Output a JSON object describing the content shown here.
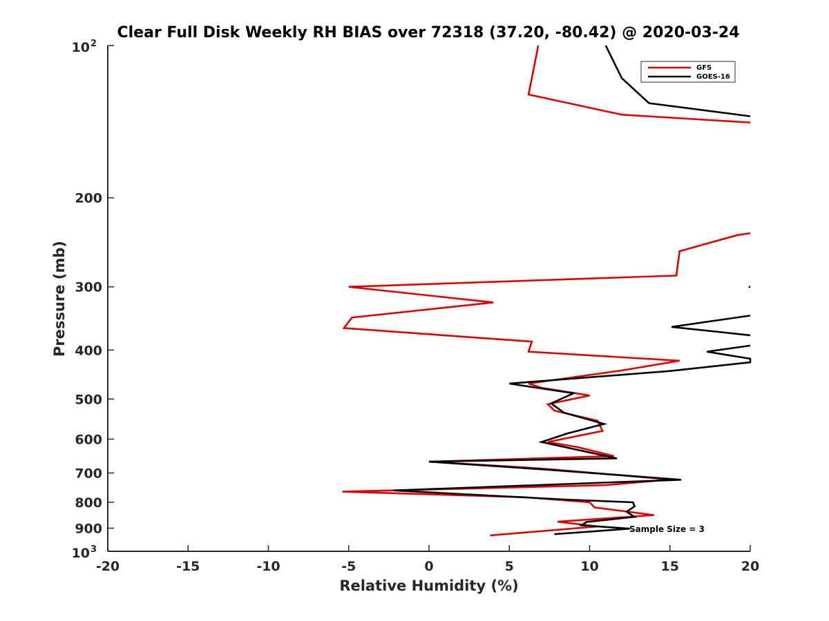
{
  "chart_data": {
    "type": "line",
    "title": "Clear Full Disk Weekly RH BIAS over 72318 (37.20, -80.42) @ 2020-03-24",
    "xlabel": "Relative Humidity (%)",
    "ylabel": "Pressure (mb)",
    "xlim": [
      -20,
      20
    ],
    "ylim": [
      100,
      1000
    ],
    "yscale": "log",
    "y_reversed": true,
    "grid": false,
    "legend_position": "top-right",
    "x_ticks": [
      "-20",
      "-15",
      "-10",
      "-5",
      "0",
      "5",
      "10",
      "15",
      "20"
    ],
    "y_ticks": [
      {
        "value": 100,
        "base": "10",
        "exp": "2"
      },
      {
        "value": 200,
        "label": "200"
      },
      {
        "value": 300,
        "label": "300"
      },
      {
        "value": 400,
        "label": "400"
      },
      {
        "value": 500,
        "label": "500"
      },
      {
        "value": 600,
        "label": "600"
      },
      {
        "value": 700,
        "label": "700"
      },
      {
        "value": 800,
        "label": "800"
      },
      {
        "value": 900,
        "label": "900"
      },
      {
        "value": 1000,
        "base": "10",
        "exp": "3"
      }
    ],
    "annotation": "Sample Size = 3",
    "series": [
      {
        "name": "GFS",
        "color": "#e00000",
        "segments": [
          [
            [
              6.8,
              100
            ],
            [
              6.2,
              125
            ],
            [
              12.0,
              137
            ],
            [
              20.0,
              142
            ]
          ],
          [
            [
              20.0,
              235
            ],
            [
              19.2,
              237
            ],
            [
              15.6,
              255
            ],
            [
              15.4,
              285
            ],
            [
              -5.0,
              300
            ],
            [
              4.0,
              322
            ],
            [
              -4.8,
              345
            ],
            [
              -5.3,
              362
            ],
            [
              6.4,
              385
            ],
            [
              6.2,
              403
            ],
            [
              15.6,
              420
            ],
            [
              12.0,
              439
            ],
            [
              6.2,
              466
            ],
            [
              7.0,
              475
            ],
            [
              10.0,
              492
            ],
            [
              7.4,
              512
            ],
            [
              7.8,
              527
            ],
            [
              10.5,
              552
            ],
            [
              10.8,
              578
            ],
            [
              7.4,
              608
            ],
            [
              9.2,
              622
            ],
            [
              11.5,
              648
            ],
            [
              0.0,
              665
            ],
            [
              7.0,
              686
            ],
            [
              15.0,
              721
            ],
            [
              11.0,
              740
            ],
            [
              -5.4,
              762
            ],
            [
              6.0,
              782
            ],
            [
              10.0,
              800
            ],
            [
              10.3,
              819
            ],
            [
              14.0,
              848
            ],
            [
              8.0,
              874
            ],
            [
              10.5,
              893
            ],
            [
              3.8,
              930
            ]
          ]
        ]
      },
      {
        "name": "GOES-16",
        "color": "#000000",
        "segments": [
          [
            [
              11.0,
              100
            ],
            [
              12.0,
              116
            ],
            [
              13.7,
              130
            ],
            [
              20.0,
              138
            ]
          ],
          [
            [
              19.9,
              300
            ],
            [
              20.0,
              300
            ]
          ],
          [
            [
              20.0,
              342
            ],
            [
              15.1,
              360
            ],
            [
              20.0,
              374
            ]
          ],
          [
            [
              20.0,
              392
            ],
            [
              17.3,
              403
            ],
            [
              20.0,
              416
            ],
            [
              20.0,
              423
            ],
            [
              15.0,
              440
            ],
            [
              5.0,
              466
            ],
            [
              9.0,
              487
            ],
            [
              7.6,
              510
            ],
            [
              8.4,
              532
            ],
            [
              10.9,
              560
            ],
            [
              8.6,
              585
            ],
            [
              7.0,
              608
            ],
            [
              11.7,
              655
            ],
            [
              0.0,
              665
            ],
            [
              7.5,
              690
            ],
            [
              15.7,
              722
            ],
            [
              -2.2,
              758
            ],
            [
              8.5,
              790
            ],
            [
              12.7,
              800
            ],
            [
              12.8,
              815
            ],
            [
              12.3,
              835
            ],
            [
              12.8,
              855
            ],
            [
              9.8,
              875
            ],
            [
              9.5,
              888
            ],
            [
              12.5,
              902
            ],
            [
              7.8,
              925
            ]
          ]
        ]
      }
    ]
  }
}
